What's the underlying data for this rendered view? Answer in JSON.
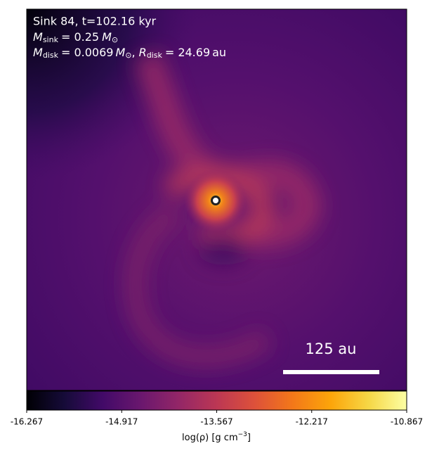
{
  "chart_data": {
    "type": "density_map",
    "annotations": {
      "line1": "Sink 84, t=102.16 kyr",
      "line2": {
        "symbol": "M",
        "subscript": "sink",
        "value": "= 0.25",
        "unit": "M",
        "unit_subscript": "⊙"
      },
      "line3": {
        "symbol": "M",
        "subscript": "disk",
        "value": "= 0.0069",
        "unit": "M",
        "unit_subscript": "⊙",
        "separator": ",",
        "symbol2": "R",
        "subscript2": "disk",
        "value2": "= 24.69",
        "unit2": "au"
      }
    },
    "scale_bar": {
      "label": "125 au"
    },
    "colorbar": {
      "label": {
        "text": "log(ρ) [g cm",
        "superscript": "−3",
        "close": "]"
      },
      "lim": [
        -16.267,
        -10.867
      ],
      "ticks": [
        -16.267,
        -14.917,
        -13.567,
        -12.217,
        -10.867
      ],
      "colors": [
        "#000004",
        "#160b39",
        "#420a68",
        "#6a176e",
        "#932667",
        "#bc3754",
        "#dd513a",
        "#f37819",
        "#fca50a",
        "#f6d746",
        "#fcffa4"
      ]
    }
  }
}
